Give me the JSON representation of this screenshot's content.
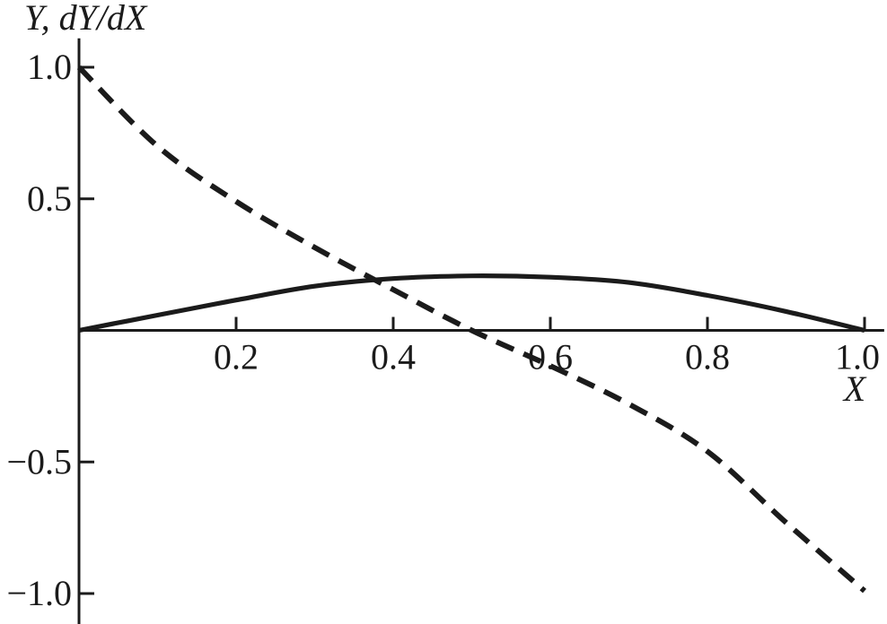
{
  "chart_data": {
    "type": "line",
    "title": "",
    "ylabel": "Y, dY/dX",
    "xlabel": "X",
    "xlim": [
      0,
      1.025
    ],
    "ylim": [
      -1.12,
      1.11
    ],
    "grid": false,
    "legend": "none",
    "axis_color": "#1b1b1b",
    "background": "#ffffff",
    "x_ticks": [
      {
        "v": 0.2,
        "label": "0.2"
      },
      {
        "v": 0.4,
        "label": "0.4"
      },
      {
        "v": 0.6,
        "label": "0.6"
      },
      {
        "v": 0.8,
        "label": "0.8"
      },
      {
        "v": 1.0,
        "label": "1.0"
      }
    ],
    "y_ticks": [
      {
        "v": 1.0,
        "label": "1.0"
      },
      {
        "v": 0.5,
        "label": "0.5"
      },
      {
        "v": -0.5,
        "label": "−0.5"
      },
      {
        "v": -1.0,
        "label": "−1.0"
      }
    ],
    "x": [
      0,
      0.1,
      0.2,
      0.3,
      0.4,
      0.5,
      0.6,
      0.7,
      0.8,
      0.9,
      1.0
    ],
    "series": [
      {
        "name": "Y",
        "line_style": "solid",
        "values": [
          0,
          0.058,
          0.115,
          0.168,
          0.197,
          0.207,
          0.202,
          0.182,
          0.133,
          0.072,
          0
        ]
      },
      {
        "name": "dY/dX",
        "line_style": "dashed",
        "values": [
          1.0,
          0.7,
          0.49,
          0.315,
          0.155,
          0.0,
          -0.135,
          -0.28,
          -0.46,
          -0.73,
          -0.99
        ]
      }
    ]
  }
}
